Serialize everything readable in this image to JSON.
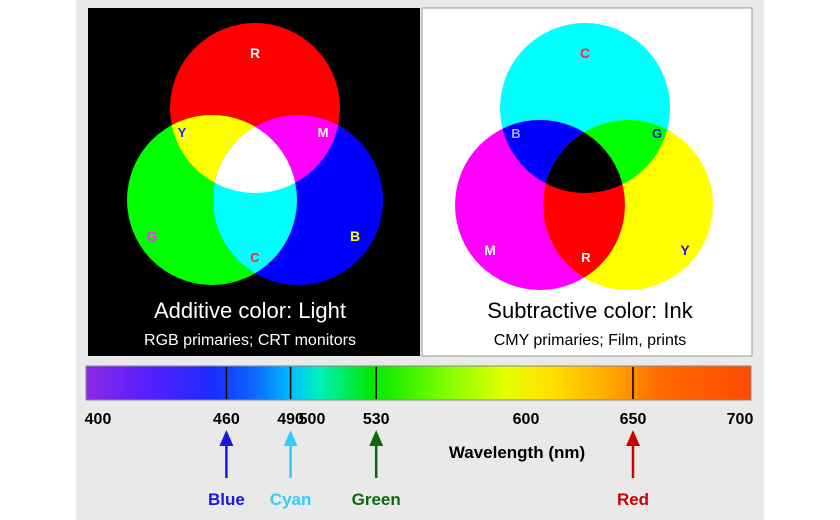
{
  "additive": {
    "title": "Additive color: Light",
    "subtitle": "RGB primaries; CRT monitors",
    "labels": {
      "r": "R",
      "g": "G",
      "b": "B",
      "y": "Y",
      "m": "M",
      "c": "C"
    },
    "colors": {
      "red": "#ff0000",
      "green": "#00ff00",
      "blue": "#0000ff",
      "background": "#000000"
    }
  },
  "subtractive": {
    "title": "Subtractive color: Ink",
    "subtitle": "CMY primaries; Film, prints",
    "labels": {
      "c": "C",
      "m": "M",
      "y": "Y",
      "b": "B",
      "g": "G",
      "r": "R"
    },
    "colors": {
      "cyan": "#00ffff",
      "magenta": "#ff00ff",
      "yellow": "#ffff00",
      "background": "#ffffff"
    }
  },
  "spectrum": {
    "min_nm": 400,
    "max_nm": 700,
    "ticks": [
      "400",
      "460",
      "490",
      "500",
      "530",
      "600",
      "650",
      "700"
    ],
    "axis_label": "Wavelength (nm)",
    "marks_nm": [
      460,
      490,
      530,
      650
    ],
    "markers": [
      {
        "label": "Blue",
        "nm": 460,
        "color": "#1818dd"
      },
      {
        "label": "Cyan",
        "nm": 490,
        "color": "#33ccff"
      },
      {
        "label": "Green",
        "nm": 530,
        "color": "#116611"
      },
      {
        "label": "Red",
        "nm": 650,
        "color": "#cc0000"
      }
    ]
  }
}
